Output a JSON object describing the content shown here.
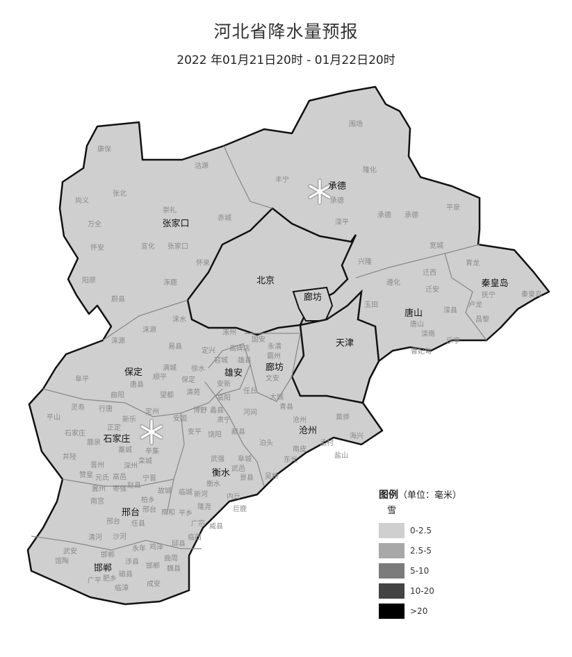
{
  "header": {
    "title": "河北省降水量预报",
    "subtitle": "2022 年01月21日20时 - 01月22日20时"
  },
  "map": {
    "fill_color": "#cfcfcf",
    "border_color": "#111111",
    "county_border_color": "#8a8a8a",
    "cities": [
      "张家口",
      "承德",
      "北京",
      "廊坊",
      "秦皇岛",
      "唐山",
      "天津",
      "保定",
      "雄安",
      "廊坊",
      "石家庄",
      "沧州",
      "衡水",
      "邢台",
      "邯郸"
    ],
    "counties": [
      "康保",
      "沽源",
      "尚义",
      "张北",
      "崇礼",
      "万全",
      "赤城",
      "怀安",
      "宣化",
      "张家口",
      "怀来",
      "阳原",
      "涿鹿",
      "蔚县",
      "围场",
      "丰宁",
      "隆化",
      "承德",
      "滦平",
      "承德",
      "承德",
      "平泉",
      "宽城",
      "兴隆",
      "迁西",
      "青龙",
      "遵化",
      "迁安",
      "玉田",
      "唐山",
      "滦县",
      "抚宁",
      "秦皇岛",
      "卢龙",
      "昌黎",
      "滦南",
      "乐亭",
      "曹妃甸",
      "涞水",
      "涞源",
      "涿州",
      "易县",
      "定兴",
      "高碑店",
      "固安",
      "永清",
      "霸州",
      "涞源",
      "满城",
      "徐水",
      "容城",
      "雄县",
      "阜平",
      "唐县",
      "顺平",
      "保定",
      "安新",
      "曲阳",
      "望都",
      "清苑",
      "高阳",
      "任丘",
      "文安",
      "大城",
      "灵寿",
      "行唐",
      "定州",
      "博野",
      "蠡县",
      "平山",
      "新乐",
      "安国",
      "肃宁",
      "河间",
      "青县",
      "沧州",
      "黄骅",
      "石家庄",
      "正定",
      "鹿泉",
      "藁城",
      "辛集",
      "安平",
      "饶阳",
      "献县",
      "泊头",
      "南皮",
      "孟村",
      "海兴",
      "井陉",
      "栾城",
      "晋州",
      "深州",
      "武强",
      "阜城",
      "东光",
      "盐山",
      "元氏",
      "赵县",
      "武邑",
      "衡水",
      "景县",
      "吴桥",
      "赞皇",
      "高邑",
      "宁晋",
      "冀州",
      "枣强",
      "故城",
      "临城",
      "柏乡",
      "新河",
      "内丘",
      "隆尧",
      "巨鹿",
      "南宫",
      "邢台",
      "邢台",
      "任县",
      "南和",
      "平乡",
      "广宗",
      "威县",
      "清河",
      "沙河",
      "永年",
      "鸡泽",
      "邱县",
      "临西",
      "武安",
      "邯郸",
      "曲周",
      "馆陶",
      "涉县",
      "邯郸",
      "肥乡",
      "广平",
      "磁县",
      "成安",
      "临漳",
      "魏县",
      "大名"
    ],
    "weather_markers": [
      {
        "icon": "snow-icon",
        "location": "承德"
      },
      {
        "icon": "snow-icon",
        "location": "石家庄"
      }
    ]
  },
  "legend": {
    "title": "图例",
    "unit": "（单位：毫米）",
    "category": "雪",
    "items": [
      {
        "label": "0-2.5",
        "color": "#cfcfcf"
      },
      {
        "label": "2.5-5",
        "color": "#a8a8a8"
      },
      {
        "label": "5-10",
        "color": "#7b7b7b"
      },
      {
        "label": "10-20",
        "color": "#444444"
      },
      {
        "label": ">20",
        "color": "#000000"
      }
    ]
  }
}
